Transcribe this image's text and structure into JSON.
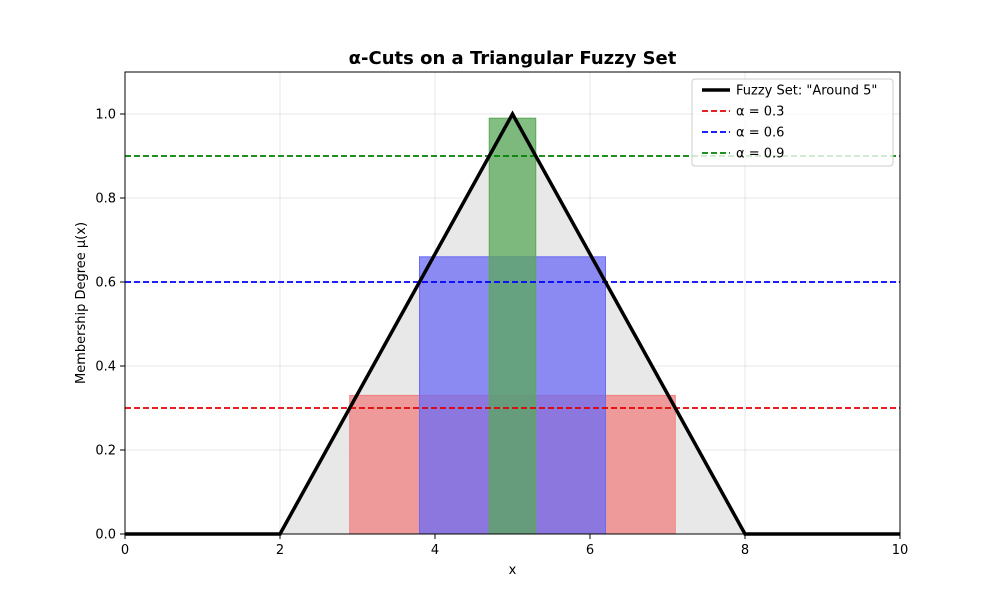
{
  "chart_data": {
    "type": "line",
    "title": "α-Cuts on a Triangular Fuzzy Set",
    "xlabel": "x",
    "ylabel": "Membership Degree μ(x)",
    "xlim": [
      0,
      10
    ],
    "ylim": [
      0,
      1.1
    ],
    "xticks": [
      "0",
      "2",
      "4",
      "6",
      "8",
      "10"
    ],
    "yticks": [
      "0.0",
      "0.2",
      "0.4",
      "0.6",
      "0.8",
      "1.0"
    ],
    "grid": true,
    "legend_position": "top-right",
    "fuzzy_set": {
      "name": "Fuzzy Set: \"Around 5\"",
      "color": "#000000",
      "fill": "#e5e5e5",
      "x": [
        0,
        2,
        5,
        8,
        10
      ],
      "y": [
        0,
        0,
        1,
        0,
        0
      ]
    },
    "alpha_cuts": [
      {
        "name": "α = 0.3",
        "alpha": 0.3,
        "color": "#d62728",
        "line_color": "#e00000",
        "interval": [
          2.9,
          7.1
        ],
        "bar_height": 0.33,
        "bar_color": "#f08080"
      },
      {
        "name": "α = 0.6",
        "alpha": 0.6,
        "color": "#0000ff",
        "line_color": "#0000ff",
        "interval": [
          3.8,
          6.2
        ],
        "bar_height": 0.66,
        "bar_color": "#6b6bf5"
      },
      {
        "name": "α = 0.9",
        "alpha": 0.9,
        "color": "#008000",
        "line_color": "#008000",
        "interval": [
          4.7,
          5.3
        ],
        "bar_height": 0.99,
        "bar_color": "#5aa85a"
      }
    ]
  }
}
